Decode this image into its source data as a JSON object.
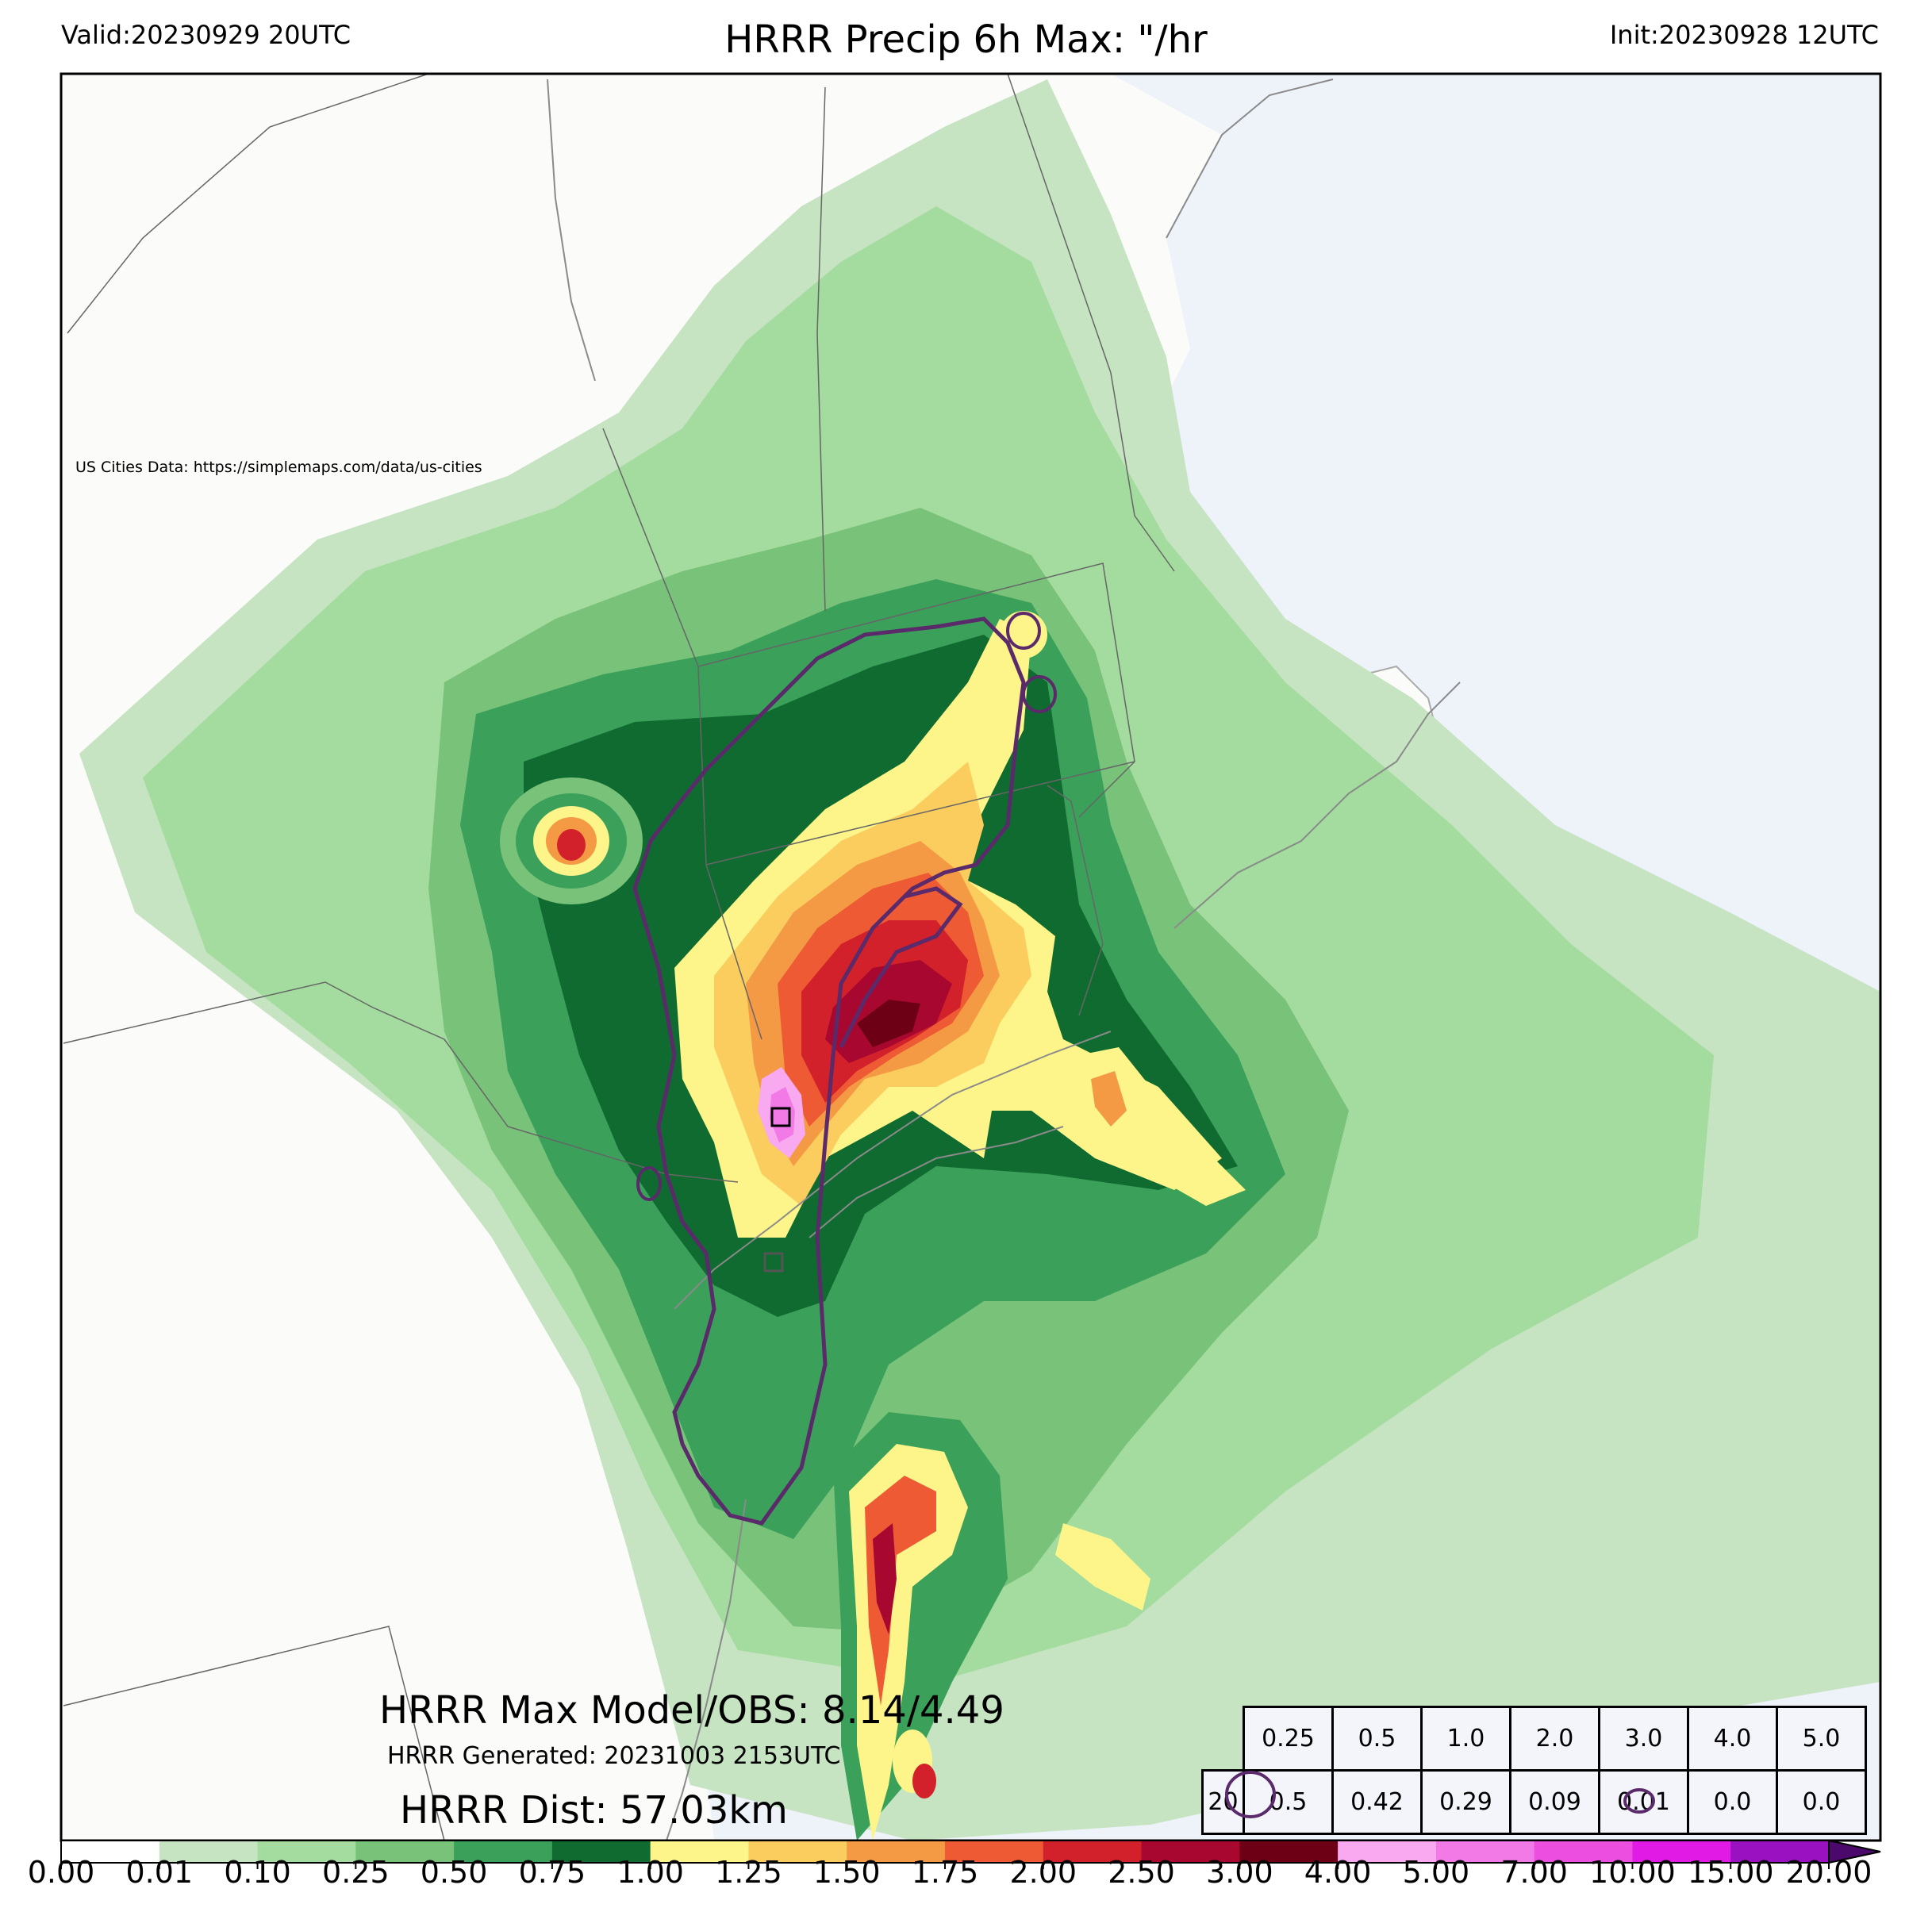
{
  "header": {
    "valid": "Valid:20230929 20UTC",
    "title": "HRRR Precip 6h Max: \"/hr",
    "init": "Init:20230928 12UTC"
  },
  "map": {
    "attribution": "US Cities Data: https://simplemaps.com/data/us-cities",
    "max_model_obs": "HRRR Max Model/OBS: 8.14/4.49",
    "generated": "HRRR Generated: 20231003 2153UTC",
    "distance": "HRRR Dist: 57.03km",
    "colors": {
      "land": "#fbfbfa",
      "ocean": "#eef2f9",
      "contour": "#5a2a6a"
    }
  },
  "threshold_table": {
    "thresholds": [
      "0.25",
      "0.5",
      "1.0",
      "2.0",
      "3.0",
      "4.0",
      "5.0"
    ],
    "row_label": "20",
    "values": [
      "0.5",
      "0.42",
      "0.29",
      "0.09",
      "0.01",
      "0.0",
      "0.0"
    ]
  },
  "colorbar": {
    "ticks": [
      "0.00",
      "0.01",
      "0.10",
      "0.25",
      "0.50",
      "0.75",
      "1.00",
      "1.25",
      "1.50",
      "1.75",
      "2.00",
      "2.50",
      "3.00",
      "4.00",
      "5.00",
      "7.00",
      "10.00",
      "15.00",
      "20.00"
    ],
    "colors": [
      "#ffffff",
      "#c6e4c2",
      "#a3dc9e",
      "#79c27a",
      "#3aa05a",
      "#106b30",
      "#fdf58a",
      "#fbcc5e",
      "#f59a44",
      "#ed5a34",
      "#d2212a",
      "#a8082f",
      "#6d0014",
      "#f8a9ef",
      "#f27ae6",
      "#ec4ee0",
      "#e21ae6",
      "#9a11c2"
    ],
    "extend_color": "#4b0a6b"
  }
}
